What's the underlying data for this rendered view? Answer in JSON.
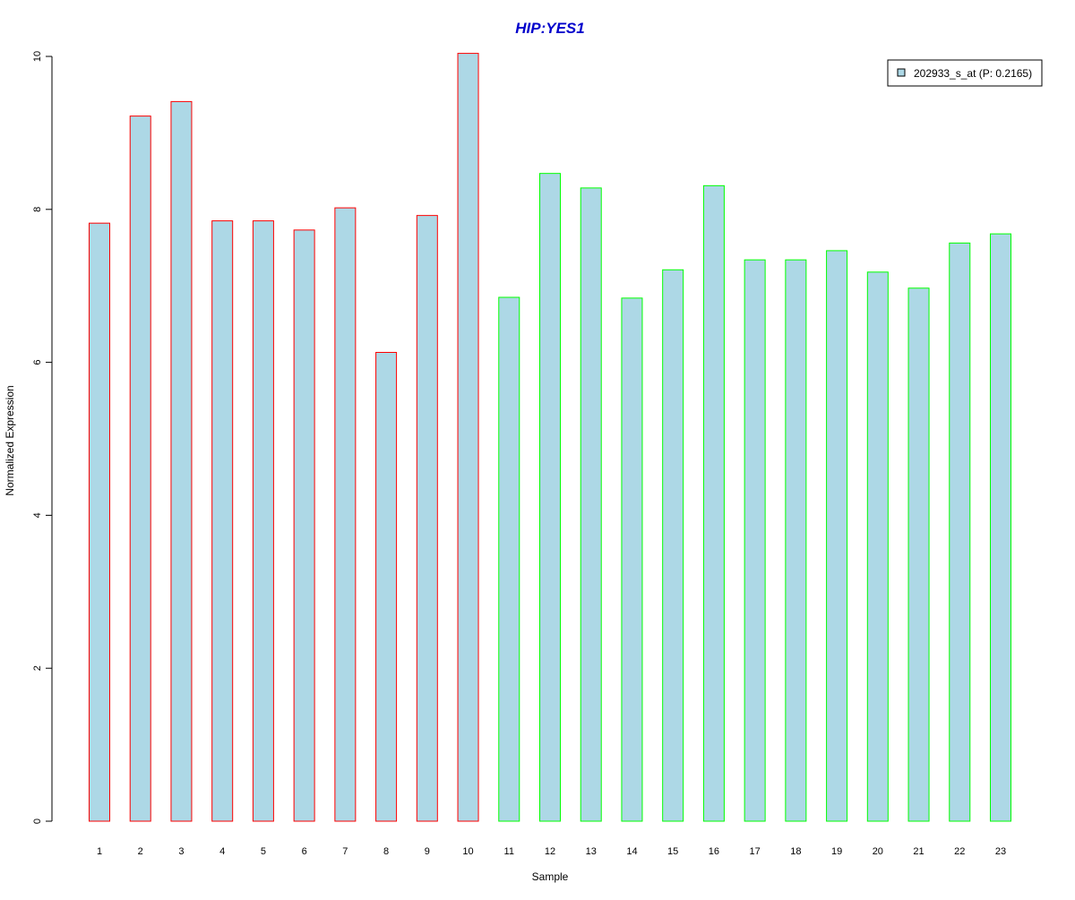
{
  "chart_data": {
    "type": "bar",
    "title": "HIP:YES1",
    "xlabel": "Sample",
    "ylabel": "Normalized Expression",
    "ylim": [
      0,
      10
    ],
    "yticks": [
      "0",
      "2",
      "4",
      "6",
      "8",
      "10"
    ],
    "categories": [
      "1",
      "2",
      "3",
      "4",
      "5",
      "6",
      "7",
      "8",
      "9",
      "10",
      "11",
      "12",
      "13",
      "14",
      "15",
      "16",
      "17",
      "18",
      "19",
      "20",
      "21",
      "22",
      "23"
    ],
    "series": [
      {
        "name": "202933_s_at (P: 0.2165)",
        "values": [
          7.82,
          9.22,
          9.41,
          7.85,
          7.85,
          7.73,
          8.02,
          6.13,
          7.92,
          10.04,
          6.85,
          8.47,
          8.28,
          6.84,
          7.21,
          8.31,
          7.34,
          7.34,
          7.46,
          7.18,
          6.97,
          7.56,
          7.68
        ],
        "fill_color": "#add8e6",
        "group_border_colors": [
          "#ff0000",
          "#ff0000",
          "#ff0000",
          "#ff0000",
          "#ff0000",
          "#ff0000",
          "#ff0000",
          "#ff0000",
          "#ff0000",
          "#ff0000",
          "#00ff00",
          "#00ff00",
          "#00ff00",
          "#00ff00",
          "#00ff00",
          "#00ff00",
          "#00ff00",
          "#00ff00",
          "#00ff00",
          "#00ff00",
          "#00ff00",
          "#00ff00",
          "#00ff00"
        ]
      }
    ],
    "legend_position": "top-right",
    "grid": false,
    "title_color": "#0000cc"
  }
}
